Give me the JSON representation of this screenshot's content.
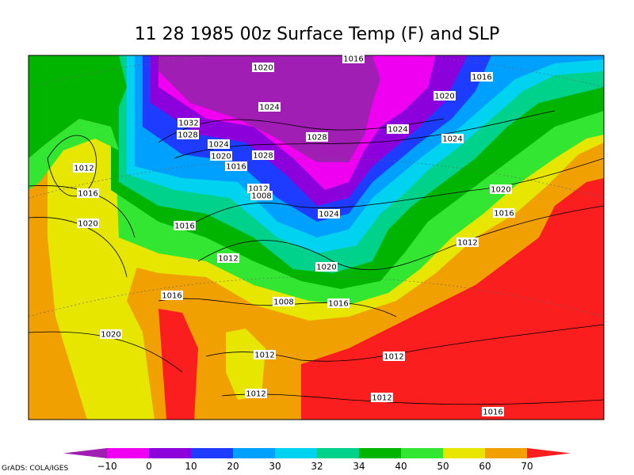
{
  "title": "11 28 1985 00z Surface Temp (F) and SLP",
  "isobar_labels": [
    "1020",
    "1016",
    "1016",
    "1020",
    "1024",
    "1032",
    "1028",
    "1024",
    "1024",
    "1028",
    "1024",
    "1020",
    "1028",
    "1016",
    "1012",
    "1012",
    "1008",
    "1020",
    "1016",
    "1024",
    "1016",
    "1020",
    "1016",
    "1012",
    "1012",
    "1020",
    "1016",
    "1008",
    "1016",
    "1020",
    "1012",
    "1012",
    "1012",
    "1012",
    "1016"
  ],
  "colorbar": {
    "ticks": [
      {
        "value": -10,
        "label": "−10"
      },
      0,
      10,
      20,
      30,
      32,
      34,
      40,
      50,
      60,
      70
    ],
    "colors": [
      "#a01eb4",
      "#f000f0",
      "#8c00dc",
      "#1e3cff",
      "#00a0ff",
      "#00d2f0",
      "#00d28c",
      "#00b400",
      "#32e632",
      "#e6e600",
      "#f0a000",
      "#fa1e1e"
    ]
  },
  "credit": "GrADS: COLA/IGES"
}
